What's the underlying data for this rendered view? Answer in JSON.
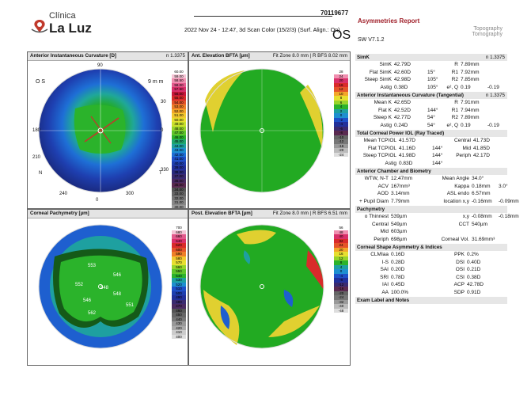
{
  "header": {
    "clinic_line1": "Clínica",
    "clinic_line2": "La Luz",
    "patient_id": "70119677",
    "scan_info": "2022 Nov 24 - 12:47, 3d Scan Color (15/2/3) (Surf. Align.: On)",
    "eye": "OS",
    "report_title": "Asymmetries Report",
    "software": "SW V7.1.2",
    "brand_lines": [
      "Topography",
      "Tomography"
    ]
  },
  "panels": {
    "p1": {
      "title": "Anterior Instantaneous Curvature [D]",
      "right": "n 1.3375",
      "scale": [
        "60.00",
        "59.00",
        "58.50",
        "58.00",
        "57.50",
        "56.00",
        "55.00",
        "54.00",
        "53.00",
        "52.00",
        "51.00",
        "50.00",
        "49.00",
        "48.00",
        "47.00",
        "46.00",
        "45.00",
        "44.00",
        "43.00",
        "42.00",
        "41.00",
        "40.00",
        "39.00",
        "38.00",
        "37.00",
        "36.00",
        "35.00",
        "34.00",
        "33.00",
        "32.00",
        "31.00",
        "30.00",
        "29.00",
        "28.00",
        "27.00",
        "26.00"
      ]
    },
    "p2": {
      "title": "Ant. Elevation BFTA [µm]",
      "right": "Fit Zone 8.0 mm | R BFS 8.02 mm",
      "scale": [
        "28",
        "24",
        "20",
        "16",
        "12",
        "10",
        "8",
        "6",
        "4",
        "2",
        "0",
        "-2",
        "-4",
        "-6",
        "-8",
        "-10",
        "-12",
        "-16",
        "-20",
        "-24"
      ]
    },
    "p3": {
      "title": "Corneal Pachymetry [µm]",
      "right": "",
      "scale": [
        "700",
        "680",
        "660",
        "640",
        "620",
        "600",
        "590",
        "580",
        "570",
        "560",
        "550",
        "540",
        "530",
        "520",
        "510",
        "500",
        "490",
        "480",
        "470",
        "460",
        "450",
        "440",
        "430",
        "420",
        "410",
        "400"
      ]
    },
    "p4": {
      "title": "Post. Elevation BFTA [µm]",
      "right": "Fit Zone 8.0 mm | R BFS 6.51 mm",
      "scale": [
        "56",
        "48",
        "40",
        "32",
        "24",
        "20",
        "16",
        "12",
        "8",
        "4",
        "0",
        "-4",
        "-8",
        "-12",
        "-16",
        "-20",
        "-24",
        "-32",
        "-40",
        "-48"
      ]
    }
  },
  "map_labels": {
    "os": "O S",
    "mm": "9 m m",
    "n": "N",
    "t": "T",
    "deg90": "90",
    "deg0": "0",
    "deg30": "30",
    "deg330": "330",
    "deg60": "60",
    "deg300": "300",
    "deg120": "120",
    "deg240": "240",
    "deg150": "150",
    "deg210": "210",
    "deg180": "180",
    "deg270": "270",
    "xticks": [
      "-4",
      "-3",
      "-2",
      "-1",
      "0",
      "1",
      "2",
      "3",
      "4"
    ],
    "yticks": [
      "4",
      "3",
      "2",
      "1",
      "0",
      "-1",
      "-2",
      "-3",
      "-4"
    ]
  },
  "pachy_values": [
    "553",
    "546",
    "552",
    "548",
    "546",
    "551",
    "562",
    "548"
  ],
  "sections": {
    "simk": "SimK",
    "tangential": "Anterior Instantaneous Curvature (Tangential)",
    "total": "Total Corneal Power IOL (Ray Traced)",
    "chamber": "Anterior Chamber and Biometry",
    "pachy": "Pachymetry",
    "shape": "Corneal Shape Asymmetry & Indices",
    "exam": "Exam Label and Notes"
  },
  "simk": {
    "n": "n 1.3375",
    "rows": [
      {
        "label": "SimK",
        "val": "42.79D",
        "deg": "",
        "rlabel": "R",
        "rval": "7.89mm",
        "extra": ""
      },
      {
        "label": "Flat SimK",
        "val": "42.60D",
        "deg": "15°",
        "rlabel": "R1",
        "rval": "7.92mm",
        "extra": ""
      },
      {
        "label": "Steep SimK",
        "val": "42.98D",
        "deg": "105°",
        "rlabel": "R2",
        "rval": "7.85mm",
        "extra": ""
      },
      {
        "label": "Astig",
        "val": "0.38D",
        "deg": "105°",
        "rlabel": "e², Q",
        "rval": "0.19",
        "extra": "-0.19"
      }
    ]
  },
  "tangential": {
    "n": "n 1.3375",
    "rows": [
      {
        "label": "Mean K",
        "val": "42.65D",
        "deg": "",
        "rlabel": "R",
        "rval": "7.91mm",
        "extra": ""
      },
      {
        "label": "Flat K",
        "val": "42.52D",
        "deg": "144°",
        "rlabel": "R1",
        "rval": "7.94mm",
        "extra": ""
      },
      {
        "label": "Steep K",
        "val": "42.77D",
        "deg": "54°",
        "rlabel": "R2",
        "rval": "7.89mm",
        "extra": ""
      },
      {
        "label": "Astig",
        "val": "0.24D",
        "deg": "54°",
        "rlabel": "e², Q",
        "rval": "0.19",
        "extra": "-0.19"
      }
    ]
  },
  "total": {
    "rows": [
      {
        "label": "Mean TCPIOL",
        "val": "41.57D",
        "deg": "",
        "rlabel": "Central",
        "rval": "41.73D"
      },
      {
        "label": "Flat TCPIOL",
        "val": "41.16D",
        "deg": "144°",
        "rlabel": "Mid",
        "rval": "41.85D"
      },
      {
        "label": "Steep TCPIOL",
        "val": "41.98D",
        "deg": "144°",
        "rlabel": "Periph",
        "rval": "42.17D"
      },
      {
        "label": "Astig",
        "val": "0.83D",
        "deg": "144°",
        "rlabel": "",
        "rval": ""
      }
    ]
  },
  "chamber": {
    "rows": [
      {
        "label": "WTW, N-T",
        "val": "12.47mm",
        "rlabel": "Mean Angle",
        "rval": "34.0°",
        "extra": ""
      },
      {
        "label": "ACV",
        "val": "167mm³",
        "rlabel": "Kappa",
        "rval": "0.18mm",
        "extra": "3.0°"
      },
      {
        "label": "AOD",
        "val": "3.14mm",
        "rlabel": "ASL endo",
        "rval": "6.57mm",
        "extra": ""
      },
      {
        "label": "+ Pupil Diam",
        "val": "7.79mm",
        "rlabel": "location x,y",
        "rval": "-0.16mm",
        "extra": "-0.09mm"
      }
    ]
  },
  "pachy": {
    "rows": [
      {
        "label": "o Thinnest",
        "val": "539µm",
        "rlabel": "x,y",
        "rval": "-0.08mm",
        "extra": "-0.18mm"
      },
      {
        "label": "Central",
        "val": "549µm",
        "rlabel": "CCT",
        "rval": "540µm",
        "extra": ""
      },
      {
        "label": "Mid",
        "val": "603µm",
        "rlabel": "",
        "rval": "",
        "extra": ""
      },
      {
        "label": "Periph",
        "val": "698µm",
        "rlabel": "Corneal Vol.",
        "rval": "31.69mm³",
        "extra": ""
      }
    ]
  },
  "shape": {
    "rows": [
      {
        "label": "CLMIaa",
        "val": "0.16D",
        "rlabel": "PPK",
        "rval": "0.2%"
      },
      {
        "label": "I-S",
        "val": "0.28D",
        "rlabel": "DSI",
        "rval": "0.40D"
      },
      {
        "label": "SAI",
        "val": "0.20D",
        "rlabel": "OSI",
        "rval": "0.21D"
      },
      {
        "label": "SRI",
        "val": "0.78D",
        "rlabel": "CSI",
        "rval": "0.38D"
      },
      {
        "label": "IAI",
        "val": "0.45D",
        "rlabel": "ACP",
        "rval": "42.78D"
      },
      {
        "label": "AA",
        "val": "100.0%",
        "rlabel": "SDP",
        "rval": "0.91D"
      }
    ]
  }
}
